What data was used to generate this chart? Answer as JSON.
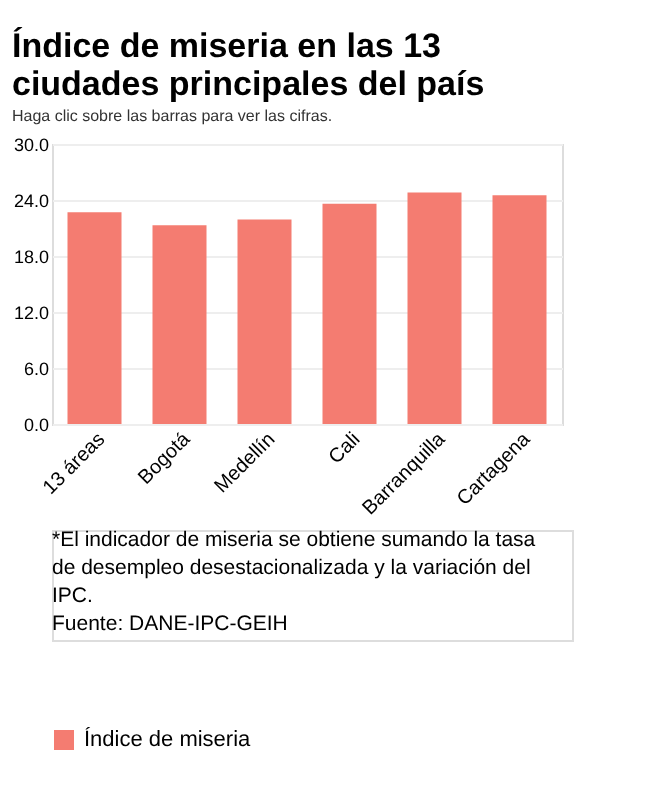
{
  "chart_data": {
    "type": "bar",
    "title": "Índice de miseria en las 13 ciudades principales del país",
    "subtitle": "Haga clic sobre las barras para ver las cifras.",
    "categories": [
      "13 áreas",
      "Bogotá",
      "Medellín",
      "Cali",
      "Barranquilla",
      "Cartagena"
    ],
    "series": [
      {
        "name": "Índice de miseria",
        "color": "#f47c71",
        "values": [
          22.7,
          21.3,
          21.9,
          23.6,
          24.8,
          24.5
        ]
      }
    ],
    "ylim": [
      0,
      30
    ],
    "yticks": [
      {
        "value": 0,
        "label": "0.0"
      },
      {
        "value": 6,
        "label": "6.0"
      },
      {
        "value": 12,
        "label": "12.0"
      },
      {
        "value": 18,
        "label": "18.0"
      },
      {
        "value": 24,
        "label": "24.0"
      },
      {
        "value": 30,
        "label": "30.0"
      }
    ],
    "grid": "y",
    "legend": "bottom",
    "annotations": [
      "*El indicador de miseria se obtiene sumando la tasa de desempleo desestacionalizada y la variación del IPC.",
      "Fuente: DANE-IPC-GEIH"
    ]
  }
}
